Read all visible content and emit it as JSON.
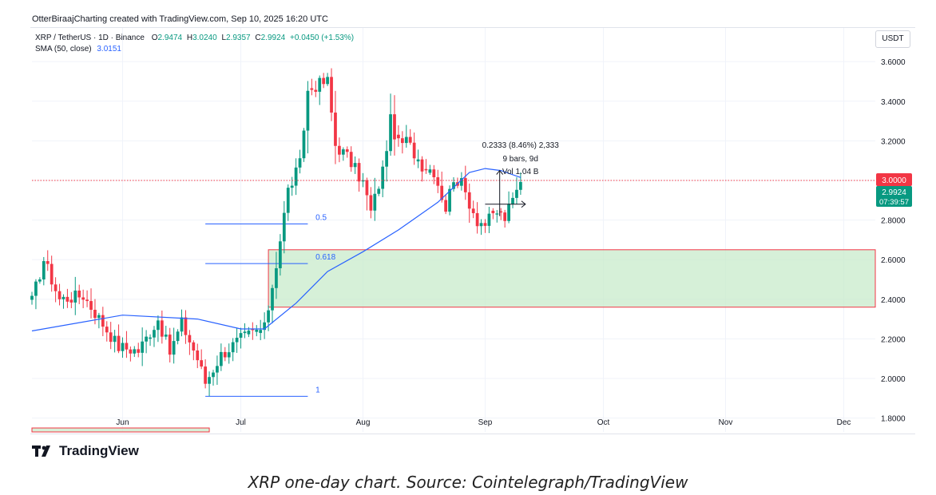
{
  "credit": "OtterBiraajCharting created with TradingView.com, Sep 10, 2025 16:20 UTC",
  "legend": {
    "symbol": "XRP / TetherUS · 1D · Binance",
    "o_label": "O",
    "o": "2.9474",
    "h_label": "H",
    "h": "3.0240",
    "l_label": "L",
    "l": "2.9357",
    "c_label": "C",
    "c": "2.9924",
    "change": "+0.0450 (+1.53%)",
    "sma_label": "SMA (50, close)",
    "sma_value": "3.0151"
  },
  "currency": "USDT",
  "brand": "TradingView",
  "caption": "XRP one-day chart. Source: Cointelegraph/TradingView",
  "colors": {
    "up": "#089981",
    "down": "#f23645",
    "sma": "#2962ff",
    "fib": "#2962ff",
    "zone_fill": "#c8ebcb",
    "zone_border": "#f23645",
    "price_line": "#f23645"
  },
  "chart_data": {
    "type": "candlestick",
    "y_axis": {
      "ticks": [
        1.8,
        2.0,
        2.2,
        2.4,
        2.6,
        2.8,
        3.0,
        3.2,
        3.4,
        3.6
      ],
      "tick_labels": [
        "1.8000",
        "2.0000",
        "2.2000",
        "2.4000",
        "2.6000",
        "2.8000",
        "3.0000",
        "3.2000",
        "3.4000",
        "3.6000"
      ],
      "ylim": [
        1.73,
        3.77
      ],
      "side": "right"
    },
    "x_axis": {
      "start": "2025-05-09",
      "end": "2025-12-09",
      "ticks": [
        "2025-06-01",
        "2025-07-01",
        "2025-08-01",
        "2025-09-01",
        "2025-10-01",
        "2025-11-01",
        "2025-12-01"
      ],
      "tick_labels": [
        "Jun",
        "Jul",
        "Aug",
        "Sep",
        "Oct",
        "Nov",
        "Dec"
      ]
    },
    "key_anchors": [
      [
        "2025-05-09",
        2.39
      ],
      [
        "2025-05-12",
        2.6
      ],
      [
        "2025-05-16",
        2.4
      ],
      [
        "2025-05-22",
        2.42
      ],
      [
        "2025-05-31",
        2.16
      ],
      [
        "2025-06-05",
        2.14
      ],
      [
        "2025-06-10",
        2.3
      ],
      [
        "2025-06-13",
        2.13
      ],
      [
        "2025-06-16",
        2.28
      ],
      [
        "2025-06-20",
        2.1
      ],
      [
        "2025-06-22",
        1.98
      ],
      [
        "2025-06-26",
        2.12
      ],
      [
        "2025-07-01",
        2.2
      ],
      [
        "2025-07-05",
        2.24
      ],
      [
        "2025-07-07",
        2.25
      ],
      [
        "2025-07-10",
        2.58
      ],
      [
        "2025-07-13",
        2.95
      ],
      [
        "2025-07-16",
        3.08
      ],
      [
        "2025-07-18",
        3.45
      ],
      [
        "2025-07-20",
        3.48
      ],
      [
        "2025-07-23",
        3.5
      ],
      [
        "2025-07-25",
        3.18
      ],
      [
        "2025-07-28",
        3.12
      ],
      [
        "2025-08-01",
        2.99
      ],
      [
        "2025-08-03",
        2.84
      ],
      [
        "2025-08-06",
        3.05
      ],
      [
        "2025-08-08",
        3.3
      ],
      [
        "2025-08-10",
        3.18
      ],
      [
        "2025-08-12",
        3.2
      ],
      [
        "2025-08-16",
        3.08
      ],
      [
        "2025-08-19",
        3.05
      ],
      [
        "2025-08-22",
        2.86
      ],
      [
        "2025-08-24",
        3.02
      ],
      [
        "2025-08-26",
        2.98
      ],
      [
        "2025-08-30",
        2.8
      ],
      [
        "2025-09-01",
        2.78
      ],
      [
        "2025-09-04",
        2.84
      ],
      [
        "2025-09-06",
        2.81
      ],
      [
        "2025-09-08",
        2.9
      ],
      [
        "2025-09-10",
        2.9924
      ]
    ],
    "last_close": 2.9924,
    "sma_50": [
      [
        "2025-05-09",
        2.24
      ],
      [
        "2025-06-01",
        2.32
      ],
      [
        "2025-06-20",
        2.3
      ],
      [
        "2025-07-01",
        2.25
      ],
      [
        "2025-07-07",
        2.25
      ],
      [
        "2025-07-15",
        2.38
      ],
      [
        "2025-07-23",
        2.54
      ],
      [
        "2025-08-01",
        2.64
      ],
      [
        "2025-08-10",
        2.75
      ],
      [
        "2025-08-20",
        2.89
      ],
      [
        "2025-08-28",
        3.04
      ],
      [
        "2025-09-01",
        3.06
      ],
      [
        "2025-09-05",
        3.05
      ],
      [
        "2025-09-10",
        3.015
      ]
    ],
    "fib_levels": [
      {
        "label": "0.5",
        "price": 2.78,
        "from": "2025-06-22",
        "to": "2025-07-18"
      },
      {
        "label": "0.618",
        "price": 2.58,
        "from": "2025-06-22",
        "to": "2025-07-18"
      },
      {
        "label": "1",
        "price": 1.91,
        "from": "2025-06-22",
        "to": "2025-07-18"
      }
    ],
    "support_zone": {
      "from_date": "2025-07-08",
      "top": 2.65,
      "bottom": 2.36
    },
    "lower_zone": {
      "from_date": "2025-05-09",
      "to_date": "2025-06-23",
      "top": 1.75
    },
    "price_line": {
      "price": 3.0,
      "label": "3.0000"
    },
    "last_price_label": {
      "price": "2.9924",
      "countdown": "07:39:57"
    },
    "measure": {
      "from_date": "2025-09-01",
      "to_date": "2025-09-10",
      "low": 2.82,
      "high": 3.05,
      "mid": 2.88,
      "label_line1": "0.2333 (8.46%) 2,333",
      "label_line2": "9 bars, 9d",
      "label_line3": "Vol 1.04 B"
    }
  }
}
